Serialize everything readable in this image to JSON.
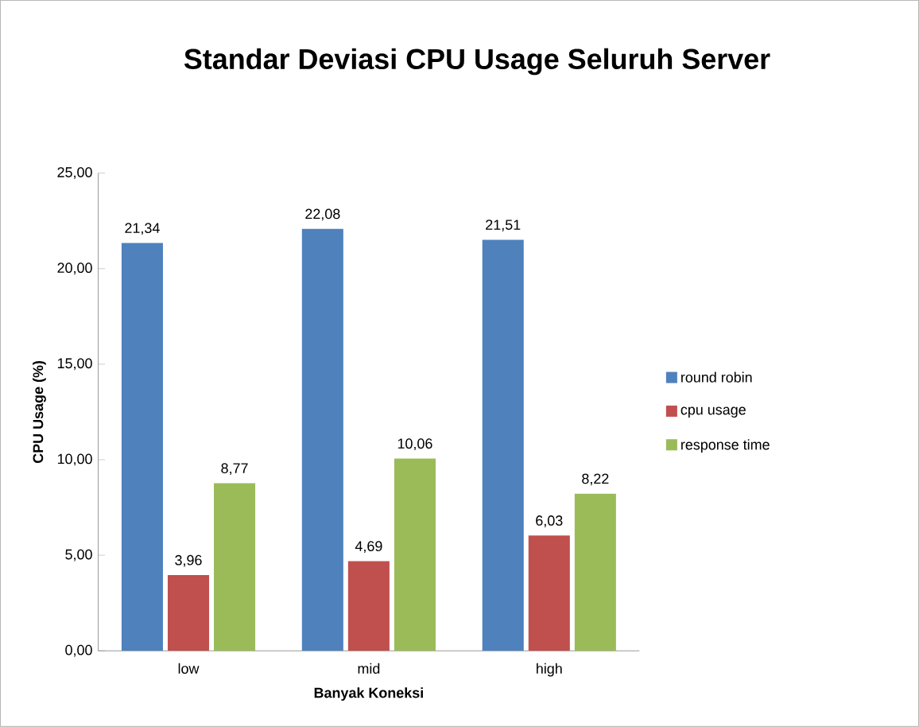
{
  "chart_data": {
    "type": "bar",
    "title": "Standar Deviasi CPU Usage Seluruh Server",
    "xlabel": "Banyak Koneksi",
    "ylabel": "CPU Usage (%)",
    "categories": [
      "low",
      "mid",
      "high"
    ],
    "series": [
      {
        "name": "round robin",
        "color": "#4f81bd",
        "values": [
          21.34,
          22.08,
          21.51
        ],
        "value_labels": [
          "21,34",
          "22,08",
          "21,51"
        ]
      },
      {
        "name": "cpu usage",
        "color": "#c0504d",
        "values": [
          3.96,
          4.69,
          6.03
        ],
        "value_labels": [
          "3,96",
          "4,69",
          "6,03"
        ]
      },
      {
        "name": "response time",
        "color": "#9bbb59",
        "values": [
          8.77,
          10.06,
          8.22
        ],
        "value_labels": [
          "8,77",
          "10,06",
          "8,22"
        ]
      }
    ],
    "ylim": [
      0,
      25
    ],
    "yticks": [
      {
        "value": 0,
        "label": "0,00"
      },
      {
        "value": 5,
        "label": "5,00"
      },
      {
        "value": 10,
        "label": "10,00"
      },
      {
        "value": 15,
        "label": "15,00"
      },
      {
        "value": 20,
        "label": "20,00"
      },
      {
        "value": 25,
        "label": "25,00"
      }
    ],
    "legend": "right",
    "grid": false
  }
}
